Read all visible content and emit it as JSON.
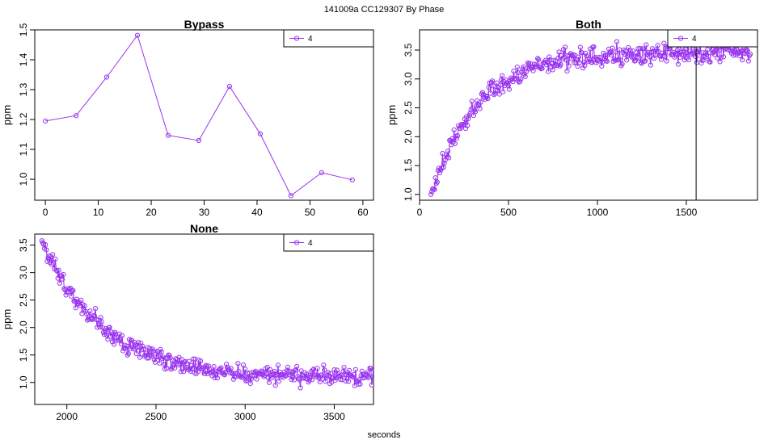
{
  "figure": {
    "title": "141009a    CC129307   By Phase",
    "xlabel": "seconds"
  },
  "colors": {
    "series": "#9933ee",
    "axis": "#000000"
  },
  "chart_data": [
    {
      "type": "line",
      "title": "Bypass",
      "ylabel": "ppm",
      "xlim": [
        -2,
        62
      ],
      "ylim": [
        0.93,
        1.5
      ],
      "xticks": [
        0,
        10,
        20,
        30,
        40,
        50,
        60
      ],
      "yticks": [
        1.0,
        1.1,
        1.2,
        1.3,
        1.4,
        1.5
      ],
      "legend": "top-right",
      "series": [
        {
          "name": "4",
          "x": [
            0,
            5.8,
            11.6,
            17.4,
            23.2,
            29.0,
            34.8,
            40.6,
            46.4,
            52.2,
            58.0
          ],
          "y": [
            1.195,
            1.213,
            1.342,
            1.482,
            1.147,
            1.13,
            1.311,
            1.152,
            0.945,
            1.022,
            0.998
          ]
        }
      ]
    },
    {
      "type": "line",
      "title": "Both",
      "ylabel": "ppm",
      "xlim": [
        0,
        1900
      ],
      "ylim": [
        0.9,
        3.85
      ],
      "xticks": [
        0,
        500,
        1000,
        1500
      ],
      "yticks": [
        1.0,
        1.5,
        2.0,
        2.5,
        3.0,
        3.5
      ],
      "legend": "top-right",
      "vline": 1555,
      "model": {
        "x_start": 64,
        "x_end": 1860,
        "y0": 1.0,
        "y_max": 3.45,
        "tau": 260,
        "noise": 0.12
      },
      "series": [
        {
          "name": "4"
        }
      ]
    },
    {
      "type": "line",
      "title": "None",
      "ylabel": "ppm",
      "xlim": [
        1820,
        3720
      ],
      "ylim": [
        0.6,
        3.7
      ],
      "xticks": [
        2000,
        2500,
        3000,
        3500
      ],
      "yticks": [
        1.0,
        1.5,
        2.0,
        2.5,
        3.0,
        3.5
      ],
      "legend": "top-right",
      "model": {
        "x_start": 1860,
        "x_end": 3720,
        "y0": 3.58,
        "y_min": 1.08,
        "tau": 340,
        "noise": 0.11
      },
      "series": [
        {
          "name": "4"
        }
      ]
    }
  ]
}
